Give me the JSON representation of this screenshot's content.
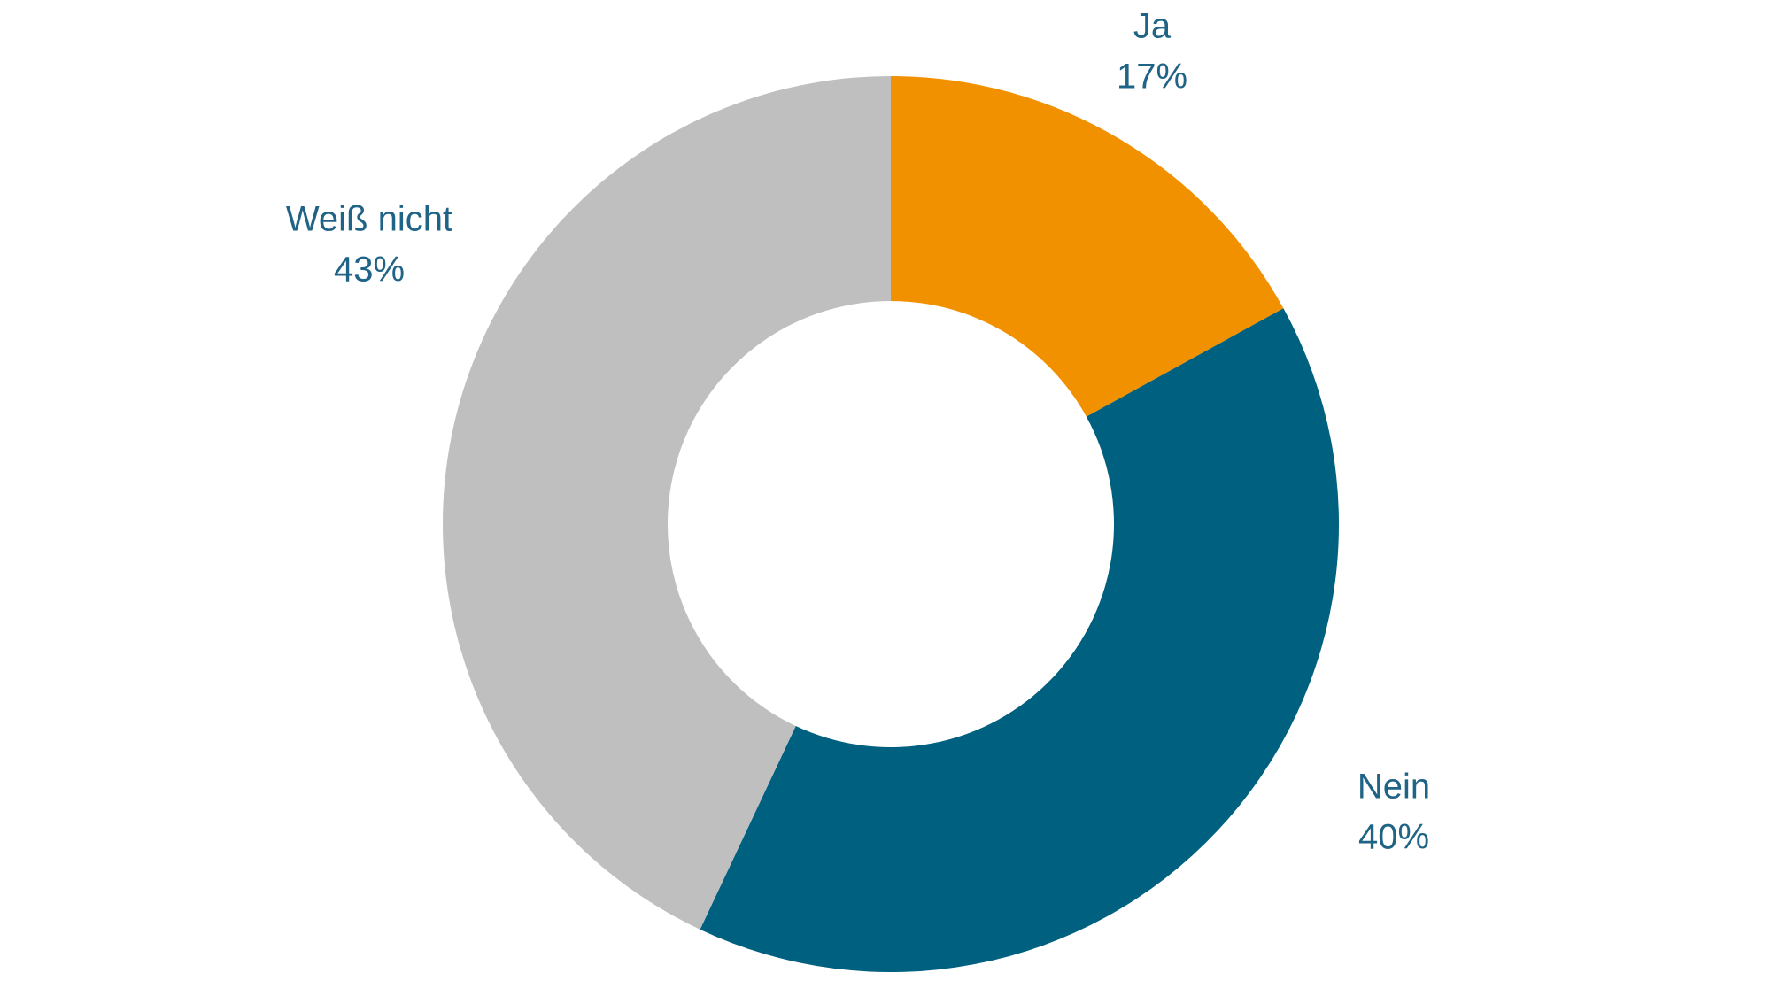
{
  "chart_data": {
    "type": "donut",
    "categories": [
      "Ja",
      "Nein",
      "Weiß nicht"
    ],
    "values": [
      17,
      40,
      43
    ],
    "value_labels": [
      "17%",
      "40%",
      "43%"
    ],
    "colors": [
      "#f29100",
      "#00607f",
      "#bfbfbf"
    ]
  }
}
